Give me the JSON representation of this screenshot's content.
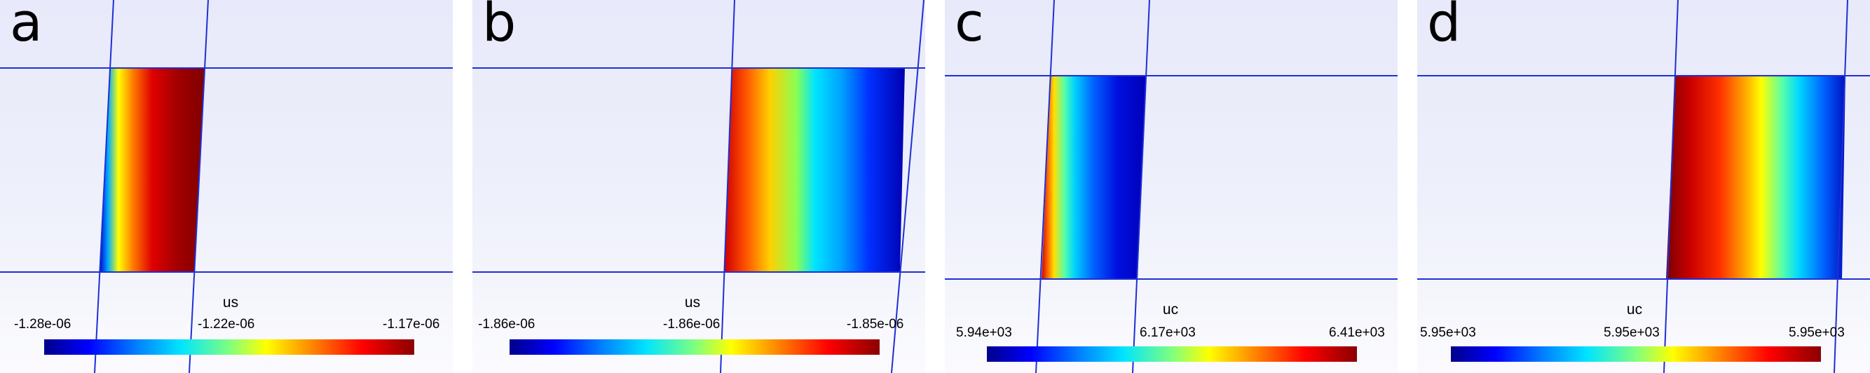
{
  "panels": [
    {
      "id": "a",
      "letter": "a",
      "variable": "us",
      "ticks": [
        "-1.28e-06",
        "-1.22e-06",
        "-1.17e-06"
      ],
      "gradient": "low-left"
    },
    {
      "id": "b",
      "letter": "b",
      "variable": "us",
      "ticks": [
        "-1.86e-06",
        "-1.86e-06",
        "-1.85e-06"
      ],
      "gradient": "high-left"
    },
    {
      "id": "c",
      "letter": "c",
      "variable": "uc",
      "ticks": [
        "5.94e+03",
        "6.17e+03",
        "6.41e+03"
      ],
      "gradient": "high-left"
    },
    {
      "id": "d",
      "letter": "d",
      "variable": "uc",
      "ticks": [
        "5.95e+03",
        "5.95e+03",
        "5.95e+03"
      ],
      "gradient": "low-left-dark"
    }
  ],
  "colors": {
    "grid_line": "#1f2fd6",
    "colormap": [
      "#00008b",
      "#0000ff",
      "#0080ff",
      "#00e5ff",
      "#7fff7f",
      "#ffff00",
      "#ff8000",
      "#ff0000",
      "#8b0000"
    ]
  }
}
